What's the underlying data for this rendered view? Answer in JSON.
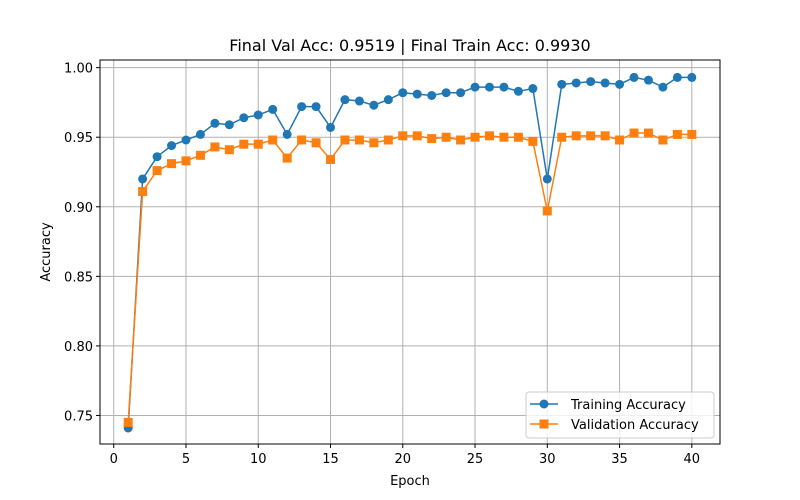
{
  "chart_data": {
    "type": "line",
    "title": "Final Val Acc: 0.9519 | Final Train Acc: 0.9930",
    "xlabel": "Epoch",
    "ylabel": "Accuracy",
    "xlim": [
      -0.95,
      41.95
    ],
    "ylim": [
      0.7295,
      1.0055
    ],
    "xticks": [
      0,
      5,
      10,
      15,
      20,
      25,
      30,
      35,
      40
    ],
    "yticks": [
      0.75,
      0.8,
      0.85,
      0.9,
      0.95,
      1.0
    ],
    "grid": true,
    "legend_position": "lower-right",
    "x": [
      1,
      2,
      3,
      4,
      5,
      6,
      7,
      8,
      9,
      10,
      11,
      12,
      13,
      14,
      15,
      16,
      17,
      18,
      19,
      20,
      21,
      22,
      23,
      24,
      25,
      26,
      27,
      28,
      29,
      30,
      31,
      32,
      33,
      34,
      35,
      36,
      37,
      38,
      39,
      40
    ],
    "series": [
      {
        "name": "Training Accuracy",
        "color": "#1f77b4",
        "marker": "circle",
        "values": [
          0.741,
          0.92,
          0.936,
          0.944,
          0.948,
          0.952,
          0.96,
          0.959,
          0.964,
          0.966,
          0.97,
          0.952,
          0.972,
          0.972,
          0.957,
          0.977,
          0.976,
          0.973,
          0.977,
          0.982,
          0.981,
          0.98,
          0.982,
          0.982,
          0.986,
          0.986,
          0.986,
          0.983,
          0.985,
          0.92,
          0.988,
          0.989,
          0.99,
          0.989,
          0.988,
          0.993,
          0.991,
          0.986,
          0.993,
          0.993
        ]
      },
      {
        "name": "Validation Accuracy",
        "color": "#ff7f0e",
        "marker": "square",
        "values": [
          0.745,
          0.911,
          0.926,
          0.931,
          0.933,
          0.937,
          0.943,
          0.941,
          0.945,
          0.945,
          0.948,
          0.935,
          0.948,
          0.946,
          0.934,
          0.948,
          0.948,
          0.946,
          0.948,
          0.951,
          0.951,
          0.949,
          0.95,
          0.948,
          0.95,
          0.951,
          0.95,
          0.95,
          0.947,
          0.897,
          0.95,
          0.951,
          0.951,
          0.951,
          0.948,
          0.953,
          0.953,
          0.948,
          0.952,
          0.952
        ]
      }
    ]
  }
}
